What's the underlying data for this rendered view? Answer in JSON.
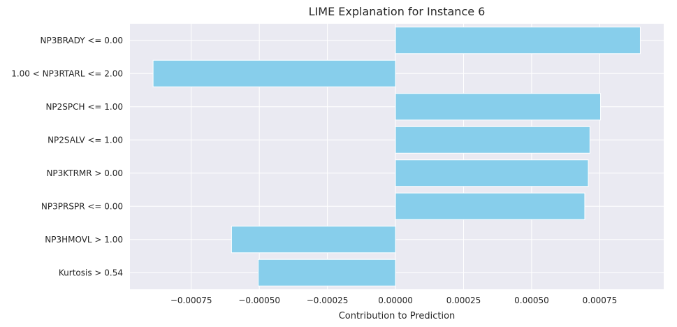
{
  "chart_data": {
    "type": "bar",
    "orientation": "horizontal",
    "title": "LIME Explanation for Instance 6",
    "xlabel": "Contribution to Prediction",
    "ylabel": "",
    "categories": [
      "NP3BRADY <= 0.00",
      "1.00 < NP3RTARL <= 2.00",
      "NP2SPCH <= 1.00",
      "NP2SALV <= 1.00",
      "NP3KTRMR > 0.00",
      "NP3PRSPR <= 0.00",
      "NP3HMOVL > 1.00",
      "Kurtosis > 0.54"
    ],
    "values": [
      0.000899,
      -0.00089,
      0.000753,
      0.000714,
      0.000708,
      0.000695,
      -0.000602,
      -0.000504
    ],
    "xlim": [
      -0.000975,
      0.000985
    ],
    "xticks": [
      -0.00075,
      -0.0005,
      -0.00025,
      0.0,
      0.00025,
      0.0005,
      0.00075
    ],
    "xtick_labels": [
      "−0.00075",
      "−0.00050",
      "−0.00025",
      "0.00000",
      "0.00025",
      "0.00050",
      "0.00075"
    ],
    "grid": true,
    "legend": "none",
    "bar_color": "#87ceeb",
    "background_color": "#eaeaf2",
    "grid_color": "#ffffff",
    "text_color": "#262626"
  }
}
